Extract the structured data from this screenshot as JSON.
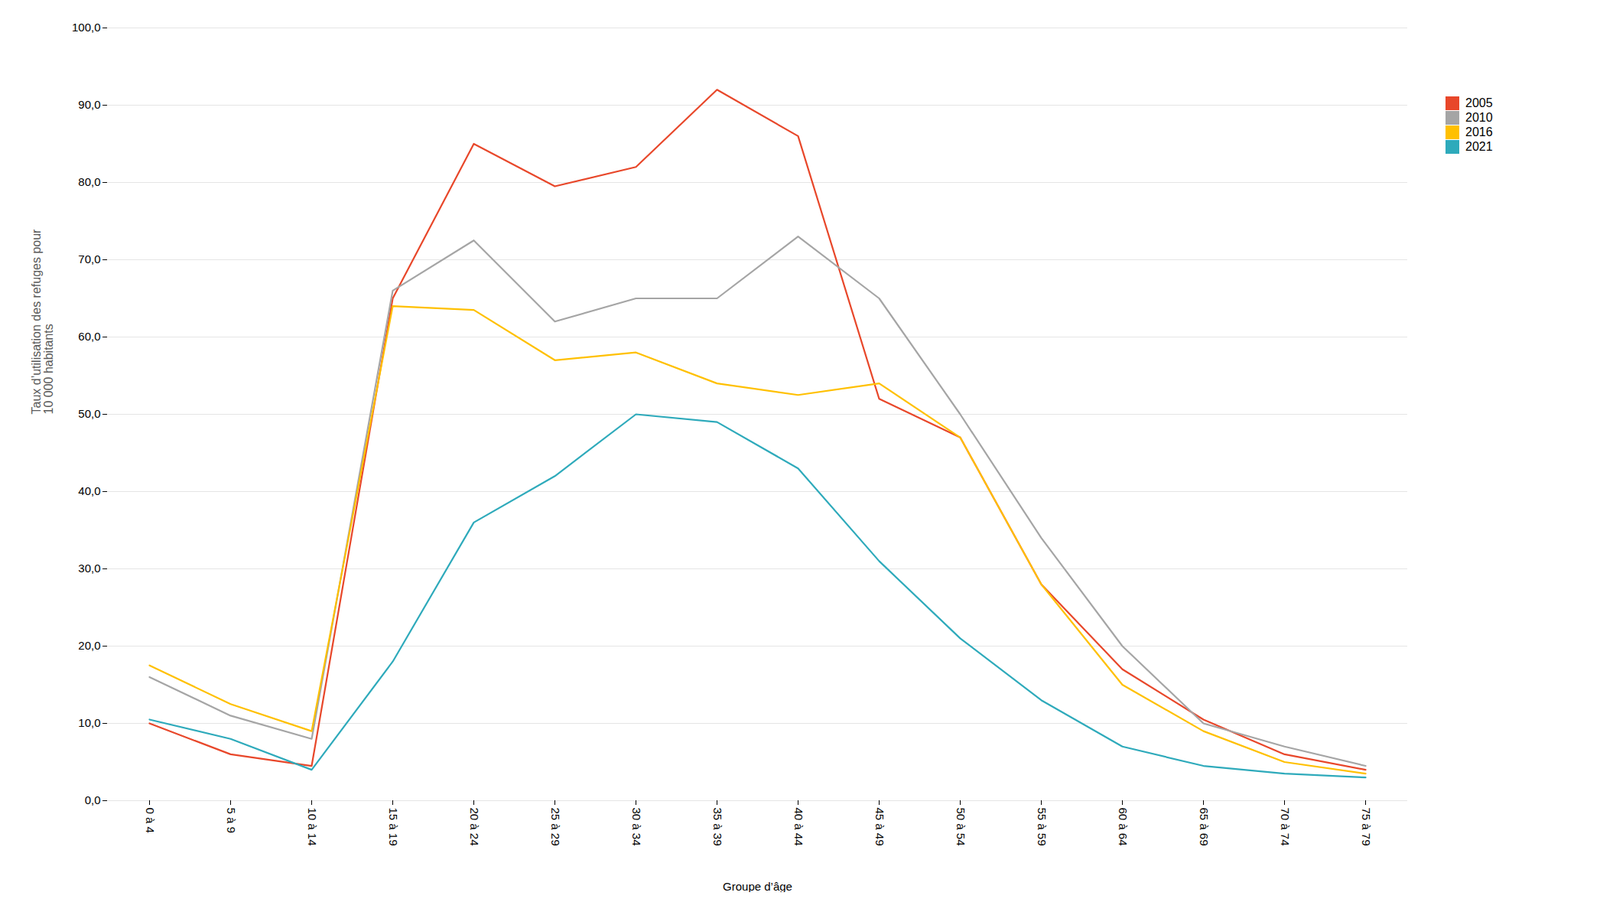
{
  "chart_data": {
    "type": "line",
    "xlabel": "Groupe d’âge",
    "ylabel": "Taux d’utilisation des refuges pour\n10 000 habitants",
    "categories": [
      "0 à 4",
      "5 à 9",
      "10 à 14",
      "15 à 19",
      "20 à 24",
      "25 à 29",
      "30 à 34",
      "35 à 39",
      "40 à 44",
      "45 à 49",
      "50 à 54",
      "55 à 59",
      "60 à 64",
      "65 à 69",
      "70 à 74",
      "75 à 79"
    ],
    "series": [
      {
        "name": "2005",
        "color": "#E8472A",
        "values": [
          10.0,
          6.0,
          4.5,
          65.0,
          85.0,
          79.5,
          82.0,
          92.0,
          86.0,
          52.0,
          47.0,
          28.0,
          17.0,
          10.5,
          6.0,
          4.0
        ]
      },
      {
        "name": "2010",
        "color": "#A5A5A5",
        "values": [
          16.0,
          11.0,
          8.0,
          66.0,
          72.5,
          62.0,
          65.0,
          65.0,
          73.0,
          65.0,
          50.0,
          34.0,
          20.0,
          10.0,
          7.0,
          4.5
        ]
      },
      {
        "name": "2016",
        "color": "#FFC000",
        "values": [
          17.5,
          12.5,
          9.0,
          64.0,
          63.5,
          57.0,
          58.0,
          54.0,
          52.5,
          54.0,
          47.0,
          28.0,
          15.0,
          9.0,
          5.0,
          3.5
        ]
      },
      {
        "name": "2021",
        "color": "#2EAABB",
        "values": [
          10.5,
          8.0,
          4.0,
          18.0,
          36.0,
          42.0,
          50.0,
          49.0,
          43.0,
          31.0,
          21.0,
          13.0,
          7.0,
          4.5,
          3.5,
          3.0
        ]
      }
    ],
    "ylim": [
      0,
      100
    ],
    "yticks": [
      {
        "value": 0,
        "label": "0,0"
      },
      {
        "value": 10,
        "label": "10,0"
      },
      {
        "value": 20,
        "label": "20,0"
      },
      {
        "value": 30,
        "label": "30,0"
      },
      {
        "value": 40,
        "label": "40,0"
      },
      {
        "value": 50,
        "label": "50,0"
      },
      {
        "value": 60,
        "label": "60,0"
      },
      {
        "value": 70,
        "label": "70,0"
      },
      {
        "value": 80,
        "label": "80,0"
      },
      {
        "value": 90,
        "label": "90,0"
      },
      {
        "value": 100,
        "label": "100,0"
      }
    ],
    "grid": true,
    "legend": "right"
  }
}
